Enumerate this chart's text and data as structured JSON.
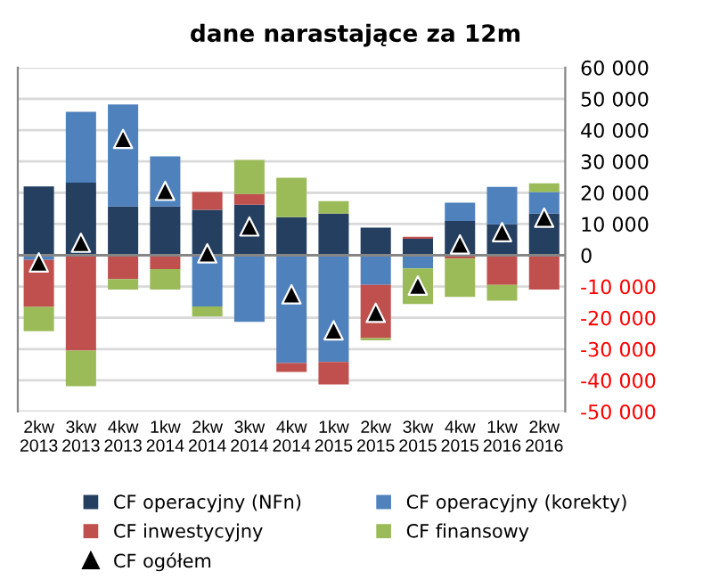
{
  "chart_data": {
    "type": "bar",
    "title": "dane narastające za 12m",
    "stacked": true,
    "categories": [
      "2kw\n2013",
      "3kw\n2013",
      "4kw\n2013",
      "1kw\n2014",
      "2kw\n2014",
      "3kw\n2014",
      "4kw\n2014",
      "1kw\n2015",
      "2kw\n2015",
      "3kw\n2015",
      "4kw\n2015",
      "1kw\n2016",
      "2kw\n2016"
    ],
    "series": [
      {
        "name": "CF operacyjny (NFn)",
        "color": "#243f60",
        "values": [
          22000,
          23200,
          15600,
          15600,
          14500,
          16200,
          12200,
          13300,
          8800,
          5300,
          11000,
          9900,
          13300
        ]
      },
      {
        "name": "CF operacyjny (korekty)",
        "color": "#4f81bd",
        "values": [
          -1500,
          22700,
          32600,
          16000,
          -16400,
          -21300,
          -34500,
          -34100,
          -9500,
          -4200,
          5800,
          12000,
          6900
        ]
      },
      {
        "name": "CF inwestycyjny",
        "color": "#c0504d",
        "values": [
          -15000,
          -30500,
          -7600,
          -4400,
          5700,
          3400,
          -2800,
          -7200,
          -17000,
          600,
          -1100,
          -9500,
          -11000
        ]
      },
      {
        "name": "CF finansowy",
        "color": "#9bbb59",
        "values": [
          -7800,
          -11400,
          -3400,
          -6600,
          -3200,
          10900,
          12600,
          4000,
          -700,
          -11400,
          -12200,
          -5000,
          2800
        ]
      },
      {
        "name": "CF ogółem",
        "type": "scatter",
        "marker": "triangle",
        "color": "#000000",
        "values": [
          -2300,
          4000,
          37200,
          20600,
          600,
          9200,
          -12500,
          -24000,
          -18400,
          -9700,
          3500,
          7400,
          12000
        ]
      }
    ],
    "ylim": [
      -50000,
      60000
    ],
    "yticks": [
      {
        "value": 60000,
        "label": "60 000"
      },
      {
        "value": 50000,
        "label": "50 000"
      },
      {
        "value": 40000,
        "label": "40 000"
      },
      {
        "value": 30000,
        "label": "30 000"
      },
      {
        "value": 20000,
        "label": "20 000"
      },
      {
        "value": 10000,
        "label": "10 000"
      },
      0,
      {
        "value": -10000,
        "label": "-10 000"
      },
      {
        "value": -20000,
        "label": "-20 000"
      },
      {
        "value": -30000,
        "label": "-30 000"
      },
      {
        "value": -40000,
        "label": "-40 000"
      },
      {
        "value": -50000,
        "label": "-50 000"
      }
    ],
    "grid": "y",
    "legend": "bottom"
  }
}
